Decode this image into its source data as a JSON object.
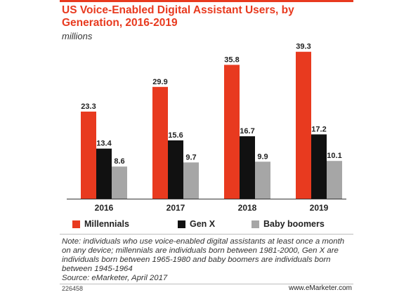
{
  "header": {
    "title": "US Voice-Enabled Digital Assistant Users, by Generation, 2016-2019",
    "subtitle": "millions"
  },
  "chart_data": {
    "type": "bar",
    "title": "US Voice-Enabled Digital Assistant Users, by Generation, 2016-2019",
    "subtitle": "millions",
    "categories": [
      "2016",
      "2017",
      "2018",
      "2019"
    ],
    "series": [
      {
        "name": "Millennials",
        "values": [
          23.3,
          29.9,
          35.8,
          39.3
        ],
        "color": "#e83a1f"
      },
      {
        "name": "Gen X",
        "values": [
          13.4,
          15.6,
          16.7,
          17.2
        ],
        "color": "#111111"
      },
      {
        "name": "Baby boomers",
        "values": [
          8.6,
          9.7,
          9.9,
          10.1
        ],
        "color": "#a6a6a6"
      }
    ],
    "ylim": [
      0,
      40
    ],
    "grid": false,
    "legend_placement": "bottom"
  },
  "note": "Note: individuals who use voice-enabled digital assistants at least once a month on any device; millennials are individuals born between 1981-2000, Gen X are individuals born between 1965-1980 and baby boomers are individuals born between 1945-1964",
  "source": "Source: eMarketer, April 2017",
  "footer": {
    "chart_id": "226458",
    "brand": "www.eMarketer.com"
  }
}
